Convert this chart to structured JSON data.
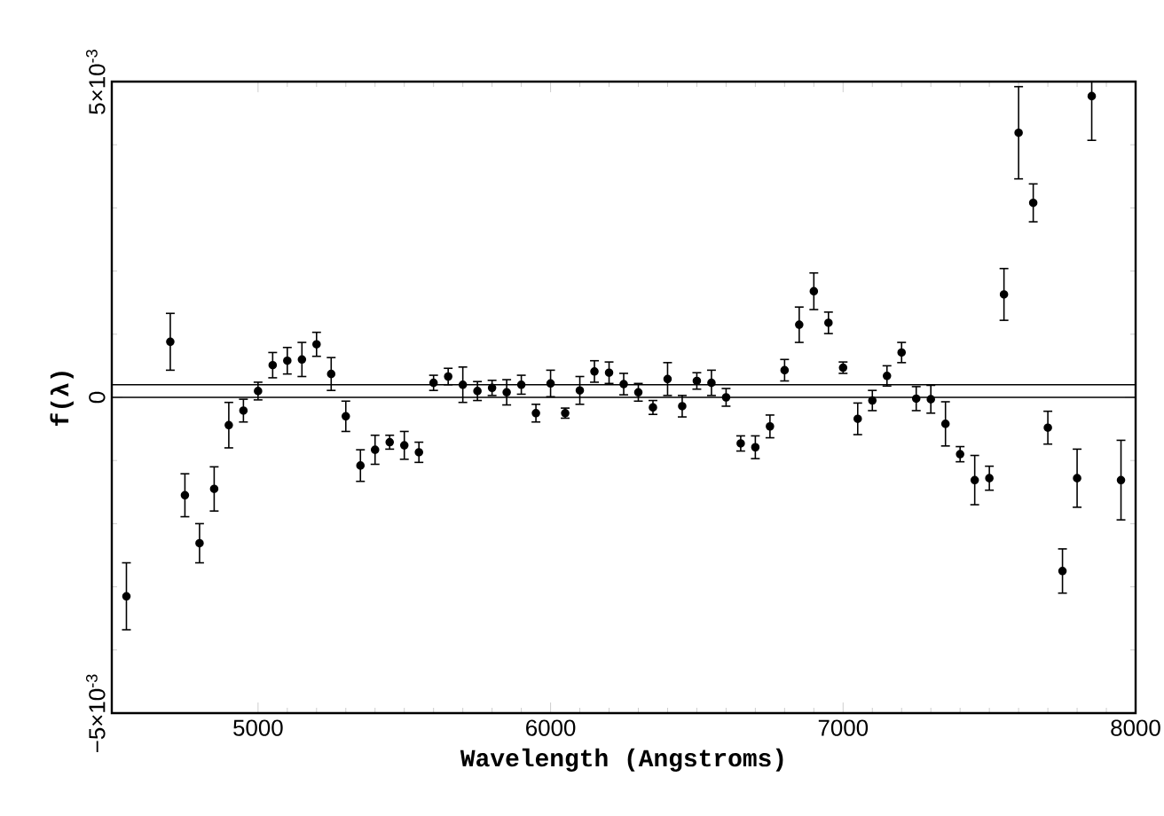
{
  "chart_data": {
    "type": "scatter",
    "xlabel": "Wavelength (Angstroms)",
    "ylabel": "f(λ)",
    "xlim": [
      4500,
      8000
    ],
    "xticks": [
      5000,
      6000,
      7000,
      8000
    ],
    "ylim": [
      -0.005,
      0.005
    ],
    "yticks": [
      {
        "value": -0.005,
        "label": "−5×10$^{-3}$"
      },
      0,
      {
        "value": 0.005,
        "label": "5×10$^{-3}$"
      }
    ],
    "marker": "circle",
    "grid": false,
    "ref_lines": [
      {
        "axis": "y",
        "value": 0
      },
      {
        "axis": "y",
        "value": 0.0002
      }
    ],
    "x": [
      4550,
      4700,
      4750,
      4800,
      4850,
      4900,
      4950,
      5000,
      5050,
      5100,
      5150,
      5200,
      5250,
      5300,
      5350,
      5400,
      5450,
      5500,
      5550,
      5600,
      5650,
      5700,
      5750,
      5800,
      5850,
      5900,
      5950,
      6000,
      6050,
      6100,
      6150,
      6200,
      6250,
      6300,
      6350,
      6400,
      6450,
      6500,
      6550,
      6600,
      6650,
      6700,
      6750,
      6800,
      6850,
      6900,
      6950,
      7000,
      7050,
      7100,
      7150,
      7200,
      7250,
      7300,
      7350,
      7400,
      7450,
      7500,
      7550,
      7600,
      7650,
      7700,
      7750,
      7800,
      7850,
      7950
    ],
    "series": [
      {
        "color": "#000000",
        "values": [
          -0.00315,
          0.00088,
          -0.00155,
          -0.00231,
          -0.00145,
          -0.00044,
          -0.00021,
          0.0001,
          0.00051,
          0.00058,
          0.0006,
          0.00084,
          0.00037,
          -0.0003,
          -0.00108,
          -0.00083,
          -0.00071,
          -0.00076,
          -0.00087,
          0.00023,
          0.00033,
          0.0002,
          0.0001,
          0.00015,
          8e-05,
          0.0002,
          -0.00025,
          0.00022,
          -0.00025,
          0.00011,
          0.00041,
          0.00039,
          0.00021,
          8e-05,
          -0.00016,
          0.00029,
          -0.00014,
          0.00026,
          0.00023,
          0.0,
          -0.00073,
          -0.00079,
          -0.00046,
          0.00043,
          0.00115,
          0.00168,
          0.00118,
          0.00047,
          -0.00034,
          -5e-05,
          0.00034,
          0.00071,
          -2e-05,
          -3e-05,
          -0.00042,
          -0.0009,
          -0.00131,
          -0.00128,
          0.00163,
          0.00419,
          0.00308,
          -0.00048,
          -0.00275,
          -0.00128,
          0.00477,
          -0.00131
        ],
        "errors": [
          0.00053,
          0.00045,
          0.00034,
          0.00031,
          0.00035,
          0.00036,
          0.00018,
          0.00014,
          0.0002,
          0.00021,
          0.00027,
          0.00019,
          0.00026,
          0.00024,
          0.00025,
          0.00023,
          0.00011,
          0.00022,
          0.00016,
          0.00012,
          0.00013,
          0.00028,
          0.00015,
          0.00012,
          0.0002,
          0.00015,
          0.00014,
          0.00021,
          8e-05,
          0.00022,
          0.00017,
          0.00017,
          0.00017,
          0.00014,
          0.00011,
          0.00026,
          0.00017,
          0.00013,
          0.0002,
          0.00014,
          0.00012,
          0.00018,
          0.00018,
          0.00017,
          0.00028,
          0.00029,
          0.00017,
          9e-05,
          0.00025,
          0.00016,
          0.00016,
          0.00016,
          0.00019,
          0.00022,
          0.00035,
          0.00012,
          0.00039,
          0.00019,
          0.00041,
          0.00073,
          0.0003,
          0.00026,
          0.00035,
          0.00046,
          [
            0.00407,
            0.005
          ],
          0.00063
        ]
      }
    ]
  }
}
